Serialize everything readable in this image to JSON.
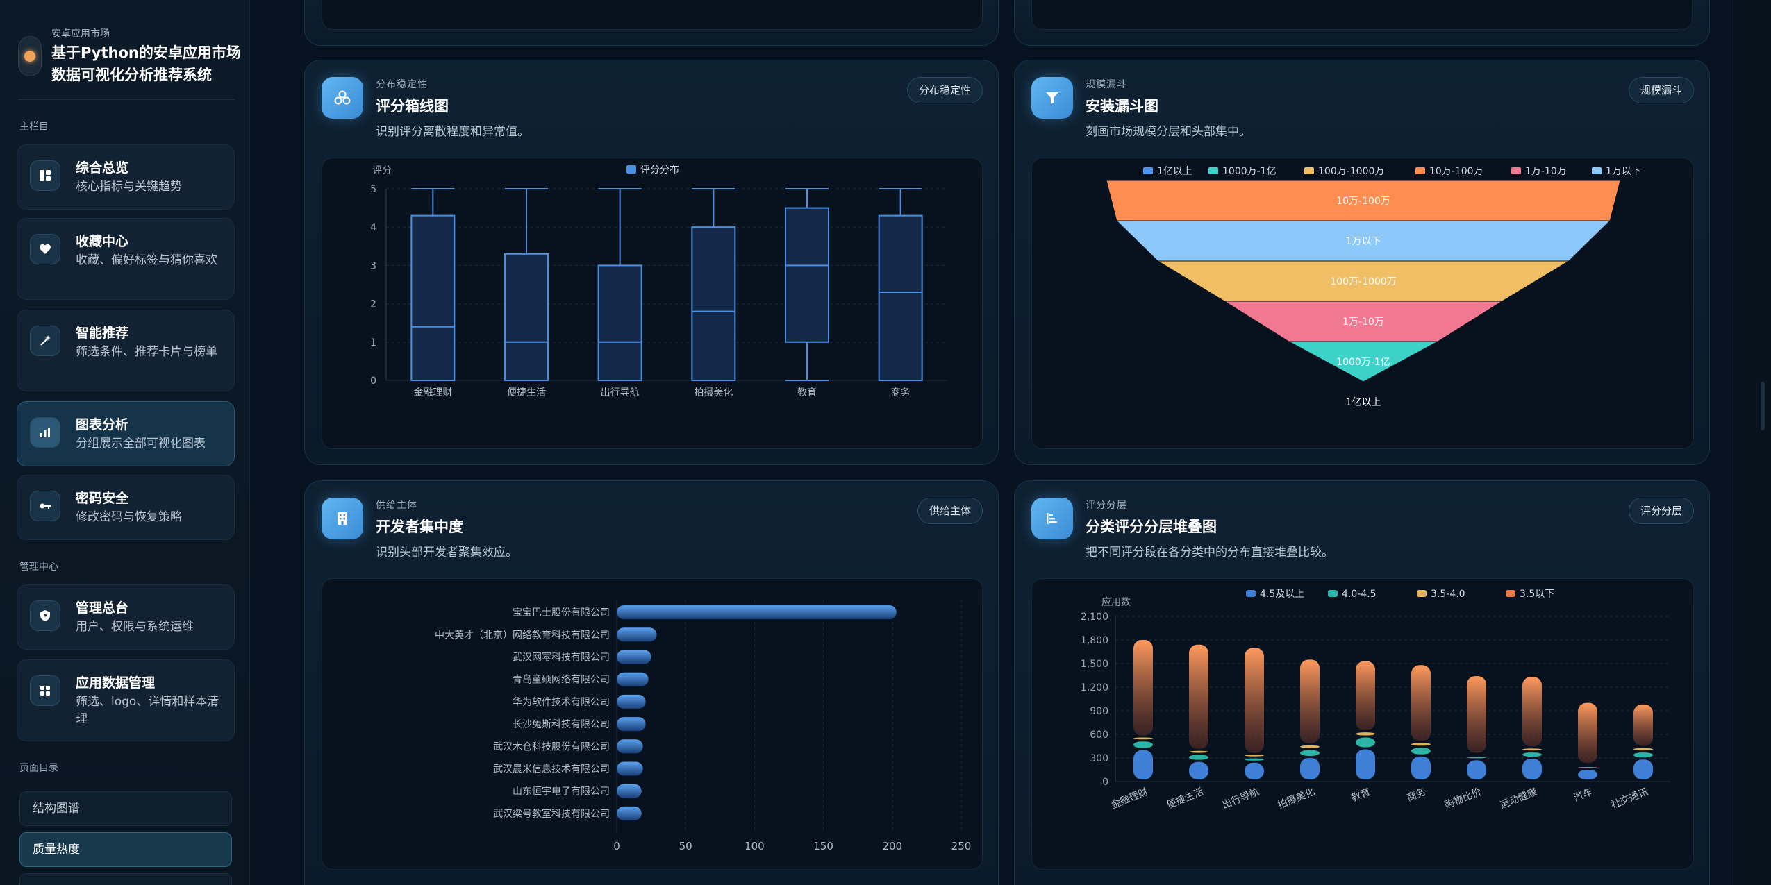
{
  "brand": {
    "kicker": "安卓应用市场",
    "title": "基于Python的安卓应用市场数据可视化分析推荐系统"
  },
  "sidebar": {
    "main_section": "主栏目",
    "manage_section": "管理中心",
    "toc_section": "页面目录",
    "items": [
      {
        "icon": "dashboard-icon",
        "title": "综合总览",
        "desc": "核心指标与关键趋势"
      },
      {
        "icon": "heart-icon",
        "title": "收藏中心",
        "desc": "收藏、偏好标签与猜你喜欢"
      },
      {
        "icon": "magic-wand-icon",
        "title": "智能推荐",
        "desc": "筛选条件、推荐卡片与榜单"
      },
      {
        "icon": "bar-chart-icon",
        "title": "图表分析",
        "desc": "分组展示全部可视化图表",
        "active": true
      },
      {
        "icon": "key-icon",
        "title": "密码安全",
        "desc": "修改密码与恢复策略"
      }
    ],
    "manage_items": [
      {
        "icon": "shield-icon",
        "title": "管理总台",
        "desc": "用户、权限与系统运维"
      },
      {
        "icon": "grid-icon",
        "title": "应用数据管理",
        "desc": "筛选、logo、详情和样本清理"
      }
    ],
    "toc": [
      {
        "label": "结构图谱"
      },
      {
        "label": "质量热度",
        "active": true
      }
    ]
  },
  "cards": {
    "boxplot": {
      "kicker": "分布稳定性",
      "title": "评分箱线图",
      "desc": "识别评分离散程度和异常值。",
      "tag": "分布稳定性"
    },
    "funnel": {
      "kicker": "规模漏斗",
      "title": "安装漏斗图",
      "desc": "刻画市场规模分层和头部集中。",
      "tag": "规模漏斗"
    },
    "developer": {
      "kicker": "供给主体",
      "title": "开发者集中度",
      "desc": "识别头部开发者聚集效应。",
      "tag": "供给主体"
    },
    "stacked": {
      "kicker": "评分分层",
      "title": "分类评分分层堆叠图",
      "desc": "把不同评分段在各分类中的分布直接堆叠比较。",
      "tag": "评分分层"
    }
  },
  "colors": {
    "accent": "#4a90e2",
    "funnel": [
      "#ff8c50",
      "#8cc8fa",
      "#f0be64",
      "#f07891",
      "#3cd2c8",
      "#4a96f0"
    ]
  },
  "chart_data": [
    {
      "type": "box",
      "ylabel": "评分",
      "legend": "评分分布",
      "ylim": [
        0,
        5
      ],
      "yticks": [
        0,
        1,
        2,
        3,
        4,
        5
      ],
      "categories": [
        "金融理财",
        "便捷生活",
        "出行导航",
        "拍摄美化",
        "教育",
        "商务"
      ],
      "boxes": [
        {
          "min": 0,
          "q1": 0,
          "median": 1.4,
          "q3": 4.3,
          "max": 5
        },
        {
          "min": 0,
          "q1": 0,
          "median": 1.0,
          "q3": 3.3,
          "max": 5
        },
        {
          "min": 0,
          "q1": 0,
          "median": 1.0,
          "q3": 3.0,
          "max": 5
        },
        {
          "min": 0,
          "q1": 0,
          "median": 1.8,
          "q3": 4.0,
          "max": 5
        },
        {
          "min": 0,
          "q1": 1.0,
          "median": 3.0,
          "q3": 4.5,
          "max": 5
        },
        {
          "min": 0,
          "q1": 0,
          "median": 2.3,
          "q3": 4.3,
          "max": 5
        }
      ]
    },
    {
      "type": "funnel",
      "legend": [
        "1亿以上",
        "1000万-1亿",
        "100万-1000万",
        "10万-100万",
        "1万-10万",
        "1万以下"
      ],
      "legend_colors": [
        "#4a96f0",
        "#3cd2c8",
        "#f0be64",
        "#ff8c50",
        "#f07891",
        "#8cc8fa"
      ],
      "stages": [
        {
          "label": "10万-100万",
          "color": "#ff8c50",
          "value": 100
        },
        {
          "label": "1万以下",
          "color": "#8cc8fa",
          "value": 96
        },
        {
          "label": "100万-1000万",
          "color": "#f0be64",
          "value": 80
        },
        {
          "label": "1万-10万",
          "color": "#f07891",
          "value": 54
        },
        {
          "label": "1000万-1亿",
          "color": "#3cd2c8",
          "value": 29
        },
        {
          "label": "1亿以上",
          "color": "#4a96f0",
          "value": 0
        }
      ]
    },
    {
      "type": "bar",
      "orientation": "horizontal",
      "categories": [
        "宝宝巴士股份有限公司",
        "中大英才（北京）网络教育科技有限公司",
        "武汉网幂科技有限公司",
        "青岛童硕网络有限公司",
        "华为软件技术有限公司",
        "长沙兔斯科技有限公司",
        "武汉木仓科技股份有限公司",
        "武汉晨米信息技术有限公司",
        "山东恒宇电子有限公司",
        "武汉梁号教室科技有限公司"
      ],
      "values": [
        203,
        29,
        25,
        23,
        21,
        21,
        19,
        19,
        18,
        18
      ],
      "xlim": [
        0,
        250
      ],
      "xticks": [
        0,
        50,
        100,
        150,
        200,
        250
      ]
    },
    {
      "type": "stacked_bar",
      "ylabel": "应用数",
      "ylim": [
        0,
        2100
      ],
      "yticks": [
        "0",
        "300",
        "600",
        "900",
        "1,200",
        "1,500",
        "1,800",
        "2,100"
      ],
      "ytick_values": [
        0,
        300,
        600,
        900,
        1200,
        1500,
        1800,
        2100
      ],
      "categories": [
        "金融理财",
        "便捷生活",
        "出行导航",
        "拍摄美化",
        "教育",
        "商务",
        "购物比价",
        "运动健康",
        "汽车",
        "社交通讯"
      ],
      "series": [
        {
          "name": "4.5及以上",
          "color": "#3f7fd6",
          "values": [
            400,
            250,
            240,
            300,
            410,
            320,
            270,
            290,
            150,
            280
          ]
        },
        {
          "name": "4.0-4.5",
          "color": "#2bb5a6",
          "values": [
            110,
            90,
            55,
            100,
            150,
            110,
            40,
            80,
            35,
            90
          ]
        },
        {
          "name": "3.5-4.0",
          "color": "#e0b35a",
          "values": [
            50,
            50,
            45,
            60,
            65,
            60,
            30,
            50,
            25,
            55
          ]
        },
        {
          "name": "3.5以下",
          "color": "#e8784a",
          "values": [
            1240,
            1350,
            1360,
            1090,
            905,
            990,
            1000,
            910,
            790,
            555
          ]
        }
      ]
    }
  ]
}
